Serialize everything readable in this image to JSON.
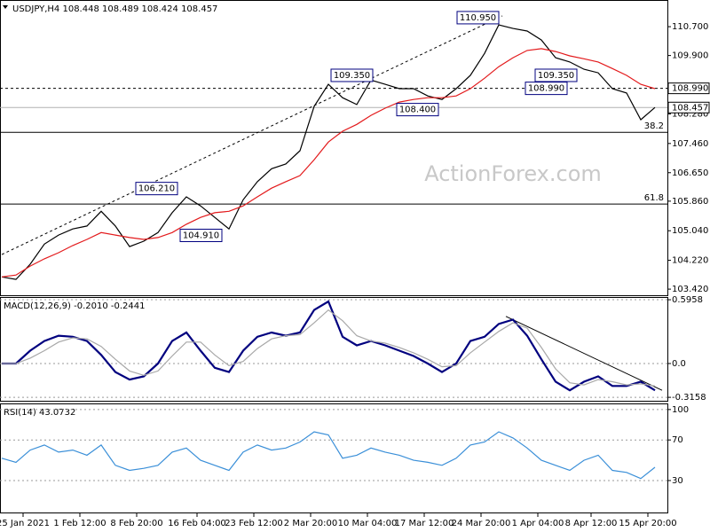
{
  "chart_data": [
    {
      "type": "line",
      "title": "USDJPY,H4  108.448 108.489 108.424 108.457",
      "watermark": "ActionForex.com",
      "x": [
        0,
        4,
        8,
        12,
        16,
        20,
        24,
        28,
        32,
        36,
        40,
        44,
        48,
        52,
        56,
        60,
        64,
        68,
        72,
        76,
        80,
        84,
        88,
        92,
        96,
        100,
        104,
        108,
        112,
        116,
        120,
        124,
        128,
        132,
        136,
        140,
        144,
        148,
        152,
        156,
        160,
        164,
        168,
        172,
        176,
        180,
        184
      ],
      "series": [
        {
          "color": "#000000",
          "values": [
            103.76,
            103.69,
            104.11,
            104.67,
            104.92,
            105.09,
            105.17,
            105.58,
            105.17,
            104.6,
            104.75,
            104.99,
            105.54,
            105.98,
            105.73,
            105.41,
            105.09,
            105.9,
            106.4,
            106.76,
            106.89,
            107.26,
            108.49,
            109.1,
            108.73,
            108.54,
            109.22,
            109.1,
            108.98,
            108.98,
            108.78,
            108.68,
            108.98,
            109.35,
            109.96,
            110.75,
            110.65,
            110.58,
            110.33,
            109.84,
            109.72,
            109.52,
            109.42,
            108.98,
            108.86,
            108.12,
            108.46
          ]
        },
        {
          "color": "#e31a1c",
          "values": [
            103.76,
            103.81,
            104.06,
            104.26,
            104.43,
            104.63,
            104.8,
            104.99,
            104.92,
            104.85,
            104.8,
            104.85,
            104.99,
            105.22,
            105.41,
            105.54,
            105.58,
            105.73,
            105.98,
            106.22,
            106.4,
            106.57,
            107.01,
            107.5,
            107.8,
            107.99,
            108.24,
            108.44,
            108.61,
            108.68,
            108.73,
            108.73,
            108.78,
            108.98,
            109.27,
            109.59,
            109.84,
            110.04,
            110.09,
            110.01,
            109.89,
            109.81,
            109.72,
            109.54,
            109.35,
            109.1,
            108.98
          ]
        }
      ],
      "xlim": [
        0,
        187
      ],
      "xticks": [
        {
          "value": 6,
          "label": "25 Jan 2021"
        },
        {
          "value": 22,
          "label": "1 Feb 12:00"
        },
        {
          "value": 38,
          "label": "8 Feb 20:00"
        },
        {
          "value": 55,
          "label": "16 Feb 04:00"
        },
        {
          "value": 71,
          "label": "23 Feb 12:00"
        },
        {
          "value": 87,
          "label": "2 Mar 20:00"
        },
        {
          "value": 103,
          "label": "10 Mar 04:00"
        },
        {
          "value": 119,
          "label": "17 Mar 12:00"
        },
        {
          "value": 135,
          "label": "24 Mar 20:00"
        },
        {
          "value": 151,
          "label": "1 Apr 04:00"
        },
        {
          "value": 166,
          "label": "8 Apr 12:00"
        },
        {
          "value": 182,
          "label": "15 Apr 20:00"
        }
      ],
      "ylim": [
        103.25,
        111.44
      ],
      "yticks": [
        {
          "value": 110.7,
          "label": "110.700"
        },
        {
          "value": 109.9,
          "label": "109.900"
        },
        {
          "value": 108.28,
          "label": "108.280"
        },
        {
          "value": 107.46,
          "label": "107.460"
        },
        {
          "value": 106.65,
          "label": "106.650"
        },
        {
          "value": 105.86,
          "label": "105.860"
        },
        {
          "value": 105.04,
          "label": "105.040"
        },
        {
          "value": 104.22,
          "label": "104.220"
        },
        {
          "value": 103.42,
          "label": "103.420"
        }
      ],
      "grid": false,
      "levels": [
        {
          "value": 108.99,
          "label": "108.990",
          "style": "dashed",
          "tag": "axis",
          "color": "#000000"
        },
        {
          "value": 108.457,
          "label": "108.457",
          "style": "solid",
          "tag": "axis",
          "color": "#b0b0b0"
        },
        {
          "value": 107.77,
          "label": "38.2",
          "style": "solid",
          "tag": "inside",
          "color": "#000000"
        },
        {
          "value": 105.78,
          "label": "61.8",
          "style": "solid",
          "tag": "inside",
          "color": "#000000"
        }
      ],
      "annotations": [
        {
          "value": 110.95,
          "label": "110.950"
        },
        {
          "value": 109.35,
          "label": "109.350"
        },
        {
          "value": 106.21,
          "label": "106.210"
        },
        {
          "value": 104.91,
          "label": "104.910"
        },
        {
          "value": 108.4,
          "label": "108.400"
        },
        {
          "value": 109.35,
          "label": "109.350"
        },
        {
          "value": 108.99,
          "label": "108.990"
        }
      ],
      "trendline": {
        "x": [
          0,
          141
        ],
        "values": [
          104.38,
          111.0
        ],
        "style": "dashed"
      }
    },
    {
      "type": "line",
      "title": "MACD(12,26,9) -0.2010 -0.2441",
      "series": [
        {
          "color": "#00007f",
          "values": [
            0,
            0,
            0.12,
            0.21,
            0.26,
            0.25,
            0.21,
            0.08,
            -0.08,
            -0.15,
            -0.12,
            0,
            0.21,
            0.29,
            0.12,
            -0.04,
            -0.08,
            0.12,
            0.25,
            0.29,
            0.26,
            0.29,
            0.5,
            0.58,
            0.25,
            0.17,
            0.21,
            0.17,
            0.12,
            0.07,
            0,
            -0.08,
            0,
            0.21,
            0.25,
            0.37,
            0.41,
            0.26,
            0.04,
            -0.17,
            -0.25,
            -0.17,
            -0.12,
            -0.21,
            -0.21,
            -0.17,
            -0.25
          ]
        },
        {
          "color": "#a8a8a8",
          "values": [
            0,
            0,
            0.05,
            0.12,
            0.2,
            0.24,
            0.23,
            0.16,
            0.04,
            -0.07,
            -0.11,
            -0.07,
            0.07,
            0.2,
            0.2,
            0.08,
            -0.02,
            0.02,
            0.14,
            0.23,
            0.26,
            0.27,
            0.38,
            0.5,
            0.4,
            0.26,
            0.21,
            0.19,
            0.15,
            0.1,
            0.04,
            -0.03,
            -0.02,
            0.1,
            0.2,
            0.3,
            0.38,
            0.33,
            0.15,
            -0.05,
            -0.18,
            -0.2,
            -0.15,
            -0.17,
            -0.2,
            -0.19,
            -0.21
          ]
        }
      ],
      "ylim": [
        -0.348,
        0.621
      ],
      "yticks": [
        0.5958,
        {
          "value": 0,
          "label": "0.0"
        },
        -0.3158
      ],
      "grid": true,
      "trendline": {
        "x": [
          142,
          186
        ],
        "values": [
          0.44,
          -0.25
        ],
        "style": "solid"
      }
    },
    {
      "type": "line",
      "title": "RSI(14) 43.0732",
      "series": [
        {
          "color": "#3a8fd8",
          "values": [
            52,
            48,
            60,
            65,
            58,
            60,
            55,
            65,
            45,
            40,
            42,
            45,
            58,
            62,
            50,
            45,
            40,
            58,
            65,
            60,
            62,
            68,
            78,
            75,
            52,
            55,
            62,
            58,
            55,
            50,
            48,
            45,
            52,
            65,
            68,
            78,
            72,
            62,
            50,
            45,
            40,
            50,
            55,
            40,
            38,
            32,
            43.07
          ]
        }
      ],
      "ylim": [
        -1.5,
        106
      ],
      "yticks": [
        100,
        70,
        30
      ],
      "grid": true
    }
  ]
}
